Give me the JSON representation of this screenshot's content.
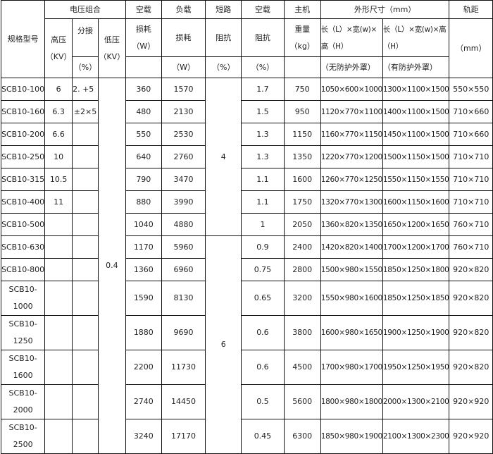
{
  "header": {
    "model": "规格型号",
    "voltage_group": "电压组合",
    "high_voltage": "高压",
    "high_voltage_unit": "（KV）",
    "tap": "分接",
    "tap_unit": "（%）",
    "low_voltage": "低压",
    "low_voltage_unit": "（KV）",
    "noload_top": "空载",
    "noload_loss": "损耗",
    "noload_loss_unit": "（W）",
    "load_top": "负载",
    "load_loss": "损耗",
    "load_loss_unit": "（W）",
    "short_top": "短路",
    "short_imp": "阻抗",
    "short_imp_unit": "（%）",
    "noload2_top": "空载",
    "noload2_imp": "阻抗",
    "noload2_imp_unit": "（%）",
    "main_top": "主机",
    "weight": "重量",
    "weight_unit": "（kg）",
    "dims": "外形尺寸（mm）",
    "dims_a": "长（L）×宽(w)×高（H）",
    "dims_a_note": "（无防护外罩）",
    "dims_b": "长（L）×宽(w)×高（H）",
    "dims_b_note": "（有防护外罩）",
    "gauge": "轨距",
    "gauge_unit": "（mm）"
  },
  "low_voltage_value": "0.4",
  "short_impedance_groups": [
    "4",
    "6"
  ],
  "rows": [
    {
      "model": "SCB10-100",
      "hv": "6",
      "tap": "2. +5",
      "p0": "360",
      "pk": "1570",
      "i0": "1.7",
      "weight": "750",
      "dim_a": "1050×600×1000",
      "dim_b": "1300×1100×1500",
      "gauge": "550×550"
    },
    {
      "model": "SCB10-160",
      "hv": "6.3",
      "tap": "±2×5",
      "p0": "480",
      "pk": "2130",
      "i0": "1.5",
      "weight": "950",
      "dim_a": "1120×770×1100",
      "dim_b": "1400×1100×1500",
      "gauge": "710×660"
    },
    {
      "model": "SCB10-200",
      "hv": "6.6",
      "tap": "",
      "p0": "550",
      "pk": "2530",
      "i0": "1.3",
      "weight": "1150",
      "dim_a": "1160×770×1150",
      "dim_b": "1450×1100×1500",
      "gauge": "710×660"
    },
    {
      "model": "SCB10-250",
      "hv": "10",
      "tap": "",
      "p0": "640",
      "pk": "2760",
      "i0": "1.3",
      "weight": "1350",
      "dim_a": "1220×770×1200",
      "dim_b": "1500×1150×1500",
      "gauge": "710×710"
    },
    {
      "model": "SCB10-315",
      "hv": "10.5",
      "tap": "",
      "p0": "790",
      "pk": "3470",
      "i0": "1.1",
      "weight": "1600",
      "dim_a": "1260×770×1250",
      "dim_b": "1550×1150×1550",
      "gauge": "710×710"
    },
    {
      "model": "SCB10-400",
      "hv": "11",
      "tap": "",
      "p0": "880",
      "pk": "3990",
      "i0": "1.1",
      "weight": "1750",
      "dim_a": "1320×770×1300",
      "dim_b": "1600×1150×1600",
      "gauge": "710×710"
    },
    {
      "model": "SCB10-500",
      "hv": "",
      "tap": "",
      "p0": "1040",
      "pk": "4880",
      "i0": "1",
      "weight": "2050",
      "dim_a": "1360×820×1350",
      "dim_b": "1650×1200×1650",
      "gauge": "760×710"
    },
    {
      "model": "SCB10-630",
      "hv": "",
      "tap": "",
      "p0": "1170",
      "pk": "5960",
      "i0": "0.9",
      "weight": "2400",
      "dim_a": "1420×820×1400",
      "dim_b": "1700×1200×1700",
      "gauge": "760×710"
    },
    {
      "model": "SCB10-800",
      "hv": "",
      "tap": "",
      "p0": "1360",
      "pk": "6960",
      "i0": "0.75",
      "weight": "2800",
      "dim_a": "1500×980×1550",
      "dim_b": "1850×1250×1800",
      "gauge": "920×820"
    },
    {
      "model": "SCB10-1000",
      "hv": "",
      "tap": "",
      "p0": "1590",
      "pk": "8130",
      "i0": "0.65",
      "weight": "3200",
      "dim_a": "1550×980×1600",
      "dim_b": "1850×1250×1850",
      "gauge": "920×820"
    },
    {
      "model": "SCB10-1250",
      "hv": "",
      "tap": "",
      "p0": "1880",
      "pk": "9690",
      "i0": "0.6",
      "weight": "3800",
      "dim_a": "1600×980×1650",
      "dim_b": "1900×1250×1900",
      "gauge": "920×820"
    },
    {
      "model": "SCB10-1600",
      "hv": "",
      "tap": "",
      "p0": "2200",
      "pk": "11730",
      "i0": "0.6",
      "weight": "4500",
      "dim_a": "1700×980×1700",
      "dim_b": "1950×1250×1950",
      "gauge": "920×820"
    },
    {
      "model": "SCB10-2000",
      "hv": "",
      "tap": "",
      "p0": "2740",
      "pk": "14450",
      "i0": "0.5",
      "weight": "5600",
      "dim_a": "1800×980×1800",
      "dim_b": "2000×1300×2100",
      "gauge": "920×920"
    },
    {
      "model": "SCB10-2500",
      "hv": "",
      "tap": "",
      "p0": "3240",
      "pk": "17170",
      "i0": "0.45",
      "weight": "6300",
      "dim_a": "1850×980×1900",
      "dim_b": "2100×1300×2300",
      "gauge": "920×920"
    }
  ]
}
